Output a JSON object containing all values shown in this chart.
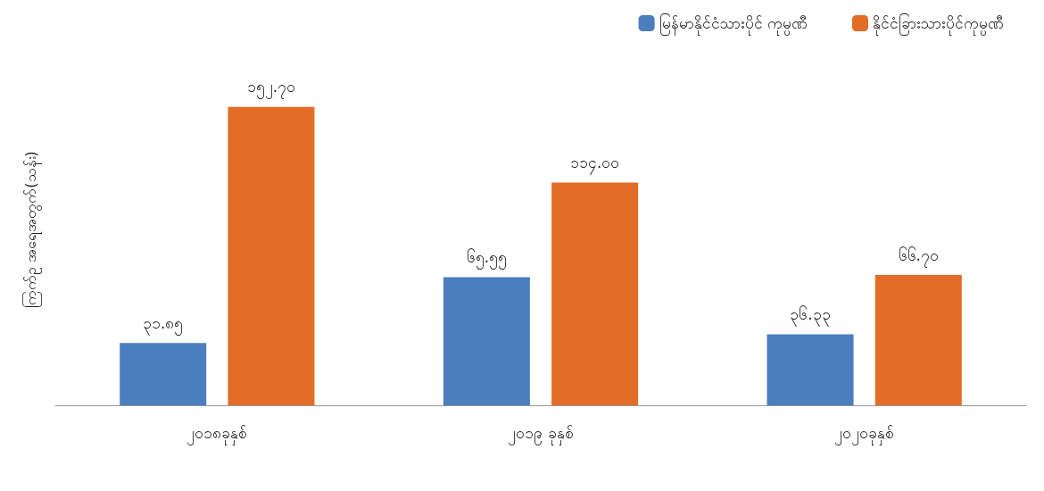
{
  "chart_data": {
    "type": "bar",
    "ylabel": "ကြက်ဥ အရေအတွက်(သန်း)",
    "categories": [
      "၂၀၁၈ခုနှစ်",
      "၂၀၁၉ ခုနှစ်",
      "၂၀၂၀ခုနှစ်"
    ],
    "series": [
      {
        "name": "မြန်မာနိုင်ငံသားပိုင် ကုမ္ပဏီ",
        "color": "#4a7ebf",
        "values": [
          31.85,
          65.55,
          36.33
        ],
        "value_labels": [
          "၃၁.၈၅",
          "၆၅.၅၅",
          "၃၆.၃၃"
        ]
      },
      {
        "name": "နိုင်ငံခြားသားပိုင်ကုမ္ပဏီ",
        "color": "#e36c26",
        "values": [
          152.7,
          114.0,
          66.7
        ],
        "value_labels": [
          "၁၅၂.၇၀",
          "၁၁၄.၀၀",
          "၆၆.၇၀"
        ]
      }
    ],
    "legend": "top right",
    "grid": false
  }
}
